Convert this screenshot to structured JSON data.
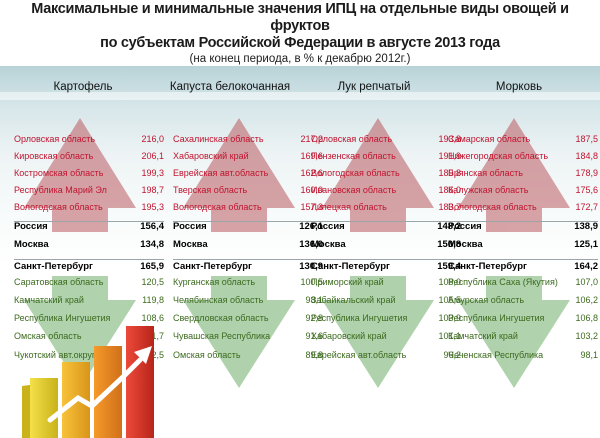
{
  "title": {
    "line1": "Максимальные и минимальные значения ИПЦ на отдельные виды овощей и фруктов",
    "line2": "по субъектам Российской Федерации в августе 2013 года",
    "line3": "(на конец периода, в % к декабрю 2012г.)"
  },
  "colors": {
    "max": "#c0142f",
    "min": "#3c6a1e",
    "federal": "#000000",
    "arrow_up": "#b95a60",
    "arrow_down": "#6fae6a"
  },
  "columns": [
    {
      "header": "Картофель",
      "max": [
        {
          "region": "Орловская область",
          "value": "216,0"
        },
        {
          "region": "Кировская область",
          "value": "206,1"
        },
        {
          "region": "Костромская область",
          "value": "199,3"
        },
        {
          "region": "Республика Марий Эл",
          "value": "198,7"
        },
        {
          "region": "Вологодская область",
          "value": "195,3"
        }
      ],
      "federal": [
        {
          "region": "Россия",
          "value": "156,4"
        },
        {
          "region": "Москва",
          "value": "134,8"
        },
        {
          "region": "Санкт-Петербург",
          "value": "165,9"
        }
      ],
      "min": [
        {
          "region": "Саратовская область",
          "value": "120,5"
        },
        {
          "region": "Камчатский край",
          "value": "119,8"
        },
        {
          "region": "Республика Ингушетия",
          "value": "108,6"
        },
        {
          "region": "Омская область",
          "value": "101,7"
        },
        {
          "region": "Чукотский авт.округ",
          "value": "92,5"
        }
      ]
    },
    {
      "header": "Капуста белокочанная",
      "max": [
        {
          "region": "Сахалинская область",
          "value": "217,2"
        },
        {
          "region": "Хабаровский край",
          "value": "169,6"
        },
        {
          "region": "Еврейская авт.область",
          "value": "162,6"
        },
        {
          "region": "Тверская область",
          "value": "160,0"
        },
        {
          "region": "Вологодская область",
          "value": "157,3"
        }
      ],
      "federal": [
        {
          "region": "Россия",
          "value": "126,1"
        },
        {
          "region": "Москва",
          "value": "136,0"
        },
        {
          "region": "Санкт-Петербург",
          "value": "130,9"
        }
      ],
      "min": [
        {
          "region": "Курганская область",
          "value": "100,5"
        },
        {
          "region": "Челябинская область",
          "value": "98,1"
        },
        {
          "region": "Свердловская область",
          "value": "92,8"
        },
        {
          "region": "Чувашская Республика",
          "value": "91,6"
        },
        {
          "region": "Омская область",
          "value": "89,8"
        }
      ]
    },
    {
      "header": "Лук репчатый",
      "max": [
        {
          "region": "Орловская область",
          "value": "193,8"
        },
        {
          "region": "Пензенская область",
          "value": "191,9"
        },
        {
          "region": "Вологодская область",
          "value": "189,8"
        },
        {
          "region": "Ивановская область",
          "value": "186,0"
        },
        {
          "region": "Липецкая область",
          "value": "183,7"
        }
      ],
      "federal": [
        {
          "region": "Россия",
          "value": "148,2"
        },
        {
          "region": "Москва",
          "value": "150,8"
        },
        {
          "region": "Санкт-Петербург",
          "value": "159,4"
        }
      ],
      "min": [
        {
          "region": "Приморский край",
          "value": "108,0"
        },
        {
          "region": "Забайкальский край",
          "value": "105,5"
        },
        {
          "region": "Республика Ингушетия",
          "value": "103,9"
        },
        {
          "region": "Хабаровский край",
          "value": "101,1"
        },
        {
          "region": "Еврейская авт.область",
          "value": "96,2"
        }
      ]
    },
    {
      "header": "Морковь",
      "max": [
        {
          "region": "Самарская область",
          "value": "187,5"
        },
        {
          "region": "Нижегородская область",
          "value": "184,8"
        },
        {
          "region": "Брянская область",
          "value": "178,9"
        },
        {
          "region": "Калужская область",
          "value": "175,6"
        },
        {
          "region": "Вологодская область",
          "value": "172,7"
        }
      ],
      "federal": [
        {
          "region": "Россия",
          "value": "138,9"
        },
        {
          "region": "Москва",
          "value": "125,1"
        },
        {
          "region": "Санкт-Петербург",
          "value": "164,2"
        }
      ],
      "min": [
        {
          "region": "Республика Саха (Якутия)",
          "value": "107,0"
        },
        {
          "region": "Амурская область",
          "value": "106,2"
        },
        {
          "region": "Республика Ингушетия",
          "value": "106,8"
        },
        {
          "region": "Камчатский край",
          "value": "103,2"
        },
        {
          "region": "Чеченская Республика",
          "value": "98,1"
        }
      ]
    }
  ]
}
